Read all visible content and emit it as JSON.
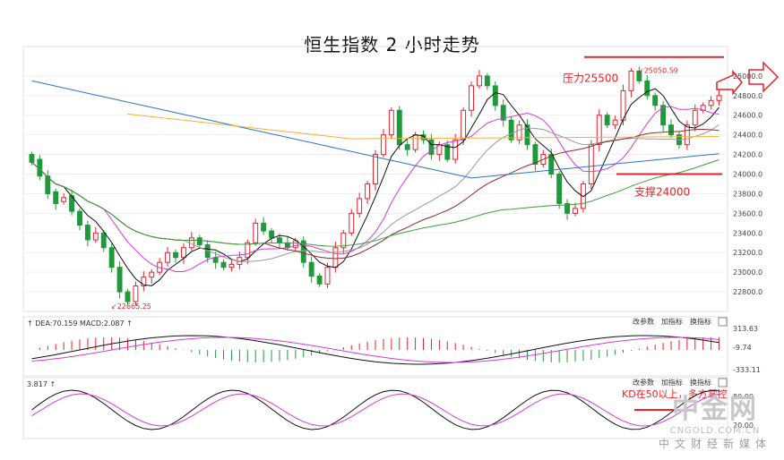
{
  "chart_data": {
    "type": "candlestick",
    "title": "恒生指数 2 小时走势",
    "y_ticks": [
      "25000.0",
      "24800.0",
      "24600.0",
      "24400.0",
      "24200.0",
      "24000.0",
      "23800.0",
      "23600.0",
      "23400.0",
      "23200.0",
      "23000.0",
      "22800.0"
    ],
    "ylim": [
      22600,
      25300
    ],
    "annotations": {
      "resistance": {
        "label": "压力25500",
        "value": 25120
      },
      "support": {
        "label": "支撑24000",
        "value": 24000
      },
      "high": {
        "label": "25050.59",
        "value": 25050.59
      },
      "low": {
        "label": "22665.25",
        "value": 22665.25
      }
    },
    "colors": {
      "up": "#e8222b",
      "down": "#1f9a3a",
      "ma5": "#111111",
      "ma10": "#d43cd7",
      "ma20": "#9a9a9a",
      "ma30": "#8b2d2d",
      "ma60": "#3aa03a",
      "ma120": "#2f74c7",
      "ma250": "#f0b23a"
    },
    "candles": [
      [
        24200,
        24120
      ],
      [
        24150,
        23980
      ],
      [
        23980,
        23800
      ],
      [
        23820,
        23700
      ],
      [
        23720,
        23760
      ],
      [
        23780,
        23620
      ],
      [
        23620,
        23480
      ],
      [
        23480,
        23330
      ],
      [
        23330,
        23400
      ],
      [
        23400,
        23250
      ],
      [
        23250,
        23050
      ],
      [
        23050,
        22800
      ],
      [
        22800,
        22700
      ],
      [
        22700,
        22860
      ],
      [
        22860,
        22950
      ],
      [
        22950,
        23000
      ],
      [
        23000,
        23100
      ],
      [
        23100,
        23200
      ],
      [
        23200,
        23150
      ],
      [
        23150,
        23250
      ],
      [
        23250,
        23350
      ],
      [
        23350,
        23280
      ],
      [
        23280,
        23150
      ],
      [
        23150,
        23100
      ],
      [
        23100,
        23050
      ],
      [
        23050,
        23080
      ],
      [
        23080,
        23150
      ],
      [
        23150,
        23300
      ],
      [
        23300,
        23500
      ],
      [
        23500,
        23420
      ],
      [
        23420,
        23350
      ],
      [
        23350,
        23300
      ],
      [
        23300,
        23250
      ],
      [
        23250,
        23320
      ],
      [
        23320,
        23100
      ],
      [
        23100,
        22960
      ],
      [
        22960,
        22880
      ],
      [
        22880,
        23050
      ],
      [
        23050,
        23250
      ],
      [
        23250,
        23400
      ],
      [
        23400,
        23600
      ],
      [
        23600,
        23750
      ],
      [
        23750,
        23900
      ],
      [
        23900,
        24200
      ],
      [
        24200,
        24400
      ],
      [
        24400,
        24650
      ],
      [
        24650,
        24300
      ],
      [
        24300,
        24250
      ],
      [
        24250,
        24400
      ],
      [
        24400,
        24350
      ],
      [
        24350,
        24200
      ],
      [
        24200,
        24300
      ],
      [
        24300,
        24150
      ],
      [
        24150,
        24350
      ],
      [
        24350,
        24650
      ],
      [
        24650,
        24900
      ],
      [
        24900,
        25000
      ],
      [
        25000,
        24900
      ],
      [
        24900,
        24700
      ],
      [
        24700,
        24550
      ],
      [
        24550,
        24350
      ],
      [
        24350,
        24500
      ],
      [
        24500,
        24300
      ],
      [
        24300,
        24100
      ],
      [
        24100,
        24200
      ],
      [
        24200,
        24000
      ],
      [
        24000,
        23700
      ],
      [
        23700,
        23600
      ],
      [
        23600,
        23650
      ],
      [
        23650,
        23900
      ],
      [
        23900,
        24300
      ],
      [
        24300,
        24600
      ],
      [
        24600,
        24500
      ],
      [
        24500,
        24550
      ],
      [
        24550,
        24850
      ],
      [
        24850,
        25050
      ],
      [
        25050,
        24950
      ],
      [
        24950,
        24800
      ],
      [
        24800,
        24700
      ],
      [
        24700,
        24500
      ],
      [
        24500,
        24400
      ],
      [
        24400,
        24300
      ],
      [
        24300,
        24500
      ],
      [
        24500,
        24650
      ],
      [
        24650,
        24700
      ],
      [
        24700,
        24750
      ],
      [
        24750,
        24800
      ]
    ],
    "macd": {
      "label": "DEA:70.159 MACD:2.087",
      "ticks": [
        "313.63",
        "-9.74",
        "-333.11"
      ],
      "menu": [
        "改参数",
        "加指标",
        "换指标"
      ]
    },
    "kd": {
      "label": "3.817",
      "ticks": [
        "80.00",
        "20.00"
      ],
      "note": "KD在50以上，多方掌控",
      "menu": [
        "改参数",
        "加指标",
        "换指标"
      ]
    }
  },
  "watermark": {
    "logo": "中金网",
    "site": "CNGOLD.COM.CN",
    "media": "中文财经新媒体"
  }
}
